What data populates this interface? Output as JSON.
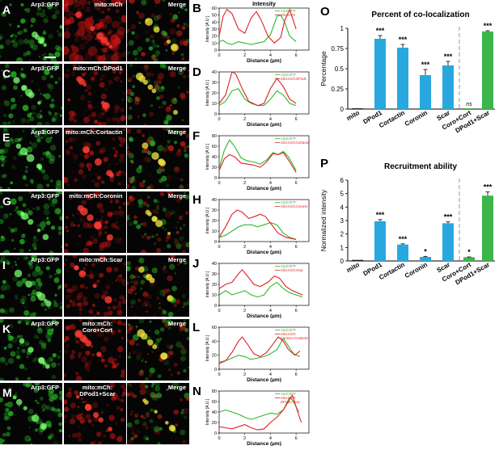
{
  "figure": {
    "rows": [
      {
        "letter": "A",
        "green": "Arp3:GFP",
        "red": "mito:mCh",
        "merge": "Merge",
        "plot_letter": "B"
      },
      {
        "letter": "C",
        "green": "Arp3:GFP",
        "red": "mito:mCh:DPod1",
        "merge": "Merge",
        "plot_letter": "D"
      },
      {
        "letter": "E",
        "green": "Arp3:GFP",
        "red": "mito:mCh:Cortactin",
        "merge": "Merge",
        "plot_letter": "F"
      },
      {
        "letter": "G",
        "green": "Arp3:GFP",
        "red": "mito:mCh:Coronin",
        "merge": "Merge",
        "plot_letter": "H"
      },
      {
        "letter": "I",
        "green": "Arp3:GFP",
        "red": "mito:mCh:Scar",
        "merge": "Merge",
        "plot_letter": "J"
      },
      {
        "letter": "K",
        "green": "Arp3:GFP",
        "red": "mito:mCh:\nCoro+Cort",
        "merge": "Merge",
        "plot_letter": "L"
      },
      {
        "letter": "M",
        "green": "Arp3:GFP",
        "red": "mito:mCh:\nDPod1+Scar",
        "merge": "Merge",
        "plot_letter": "N"
      }
    ]
  },
  "colors": {
    "green": "#2db82d",
    "red": "#e02020",
    "blue": "#29a8e0",
    "bar_green": "#3cb54a",
    "dark": "#222222"
  },
  "profiles": [
    {
      "title": "Intensity",
      "ylabel": "Intensity [A.U.]",
      "xlabel": "Distance (µm)",
      "legend": [
        "Arp3:GFP",
        "mito:mCh"
      ],
      "ylim": [
        0,
        60
      ],
      "yticks": [
        0,
        10,
        20,
        30,
        40,
        50,
        60
      ],
      "xticks": [
        0,
        2,
        4,
        6
      ],
      "green": [
        [
          0,
          12
        ],
        [
          0.3,
          14
        ],
        [
          0.6,
          10
        ],
        [
          1,
          8
        ],
        [
          1.5,
          12
        ],
        [
          2,
          10
        ],
        [
          2.5,
          8
        ],
        [
          3,
          10
        ],
        [
          3.5,
          12
        ],
        [
          4,
          22
        ],
        [
          4.5,
          48
        ],
        [
          4.8,
          50
        ],
        [
          5.1,
          40
        ],
        [
          5.5,
          20
        ],
        [
          6,
          12
        ]
      ],
      "red": [
        [
          0,
          20
        ],
        [
          0.3,
          48
        ],
        [
          0.6,
          58
        ],
        [
          1,
          52
        ],
        [
          1.5,
          30
        ],
        [
          2,
          24
        ],
        [
          2.5,
          46
        ],
        [
          2.9,
          55
        ],
        [
          3.3,
          42
        ],
        [
          3.8,
          20
        ],
        [
          4.3,
          10
        ],
        [
          4.8,
          18
        ],
        [
          5.1,
          42
        ],
        [
          5.5,
          58
        ],
        [
          6,
          30
        ]
      ]
    },
    {
      "title": "",
      "ylabel": "Intensity [A.U.]",
      "xlabel": "Distance (µm)",
      "legend": [
        "Arp3:GFP",
        "mito:mCh:DPod1"
      ],
      "ylim": [
        0,
        40
      ],
      "yticks": [
        0,
        10,
        20,
        30,
        40
      ],
      "xticks": [
        0,
        2,
        4,
        6
      ],
      "green": [
        [
          0,
          8
        ],
        [
          0.5,
          12
        ],
        [
          1,
          22
        ],
        [
          1.5,
          24
        ],
        [
          2,
          14
        ],
        [
          2.5,
          10
        ],
        [
          3,
          8
        ],
        [
          3.5,
          8
        ],
        [
          4,
          14
        ],
        [
          4.5,
          22
        ],
        [
          5,
          18
        ],
        [
          5.5,
          10
        ],
        [
          6,
          8
        ]
      ],
      "red": [
        [
          0,
          10
        ],
        [
          0.5,
          18
        ],
        [
          1,
          40
        ],
        [
          1.3,
          38
        ],
        [
          1.8,
          24
        ],
        [
          2.3,
          12
        ],
        [
          3,
          8
        ],
        [
          3.5,
          10
        ],
        [
          4,
          24
        ],
        [
          4.5,
          34
        ],
        [
          5,
          26
        ],
        [
          5.5,
          14
        ],
        [
          6,
          10
        ]
      ]
    },
    {
      "title": "",
      "ylabel": "Intensity [A.U.]",
      "xlabel": "Distance (µm)",
      "legend": [
        "Arp3:GFP",
        "mito:mCh:Cortactin"
      ],
      "ylim": [
        0,
        80
      ],
      "yticks": [
        0,
        20,
        40,
        60,
        80
      ],
      "xticks": [
        0,
        2,
        4,
        6
      ],
      "green": [
        [
          0,
          18
        ],
        [
          0.4,
          52
        ],
        [
          0.8,
          72
        ],
        [
          1.2,
          60
        ],
        [
          1.7,
          38
        ],
        [
          2.2,
          32
        ],
        [
          2.7,
          30
        ],
        [
          3.2,
          26
        ],
        [
          3.7,
          34
        ],
        [
          4.2,
          48
        ],
        [
          4.6,
          44
        ],
        [
          5,
          50
        ],
        [
          5.4,
          40
        ],
        [
          6,
          14
        ]
      ],
      "red": [
        [
          0,
          14
        ],
        [
          0.4,
          36
        ],
        [
          0.8,
          44
        ],
        [
          1.2,
          40
        ],
        [
          1.7,
          28
        ],
        [
          2.2,
          26
        ],
        [
          2.7,
          24
        ],
        [
          3.2,
          20
        ],
        [
          3.7,
          30
        ],
        [
          4.2,
          46
        ],
        [
          4.6,
          44
        ],
        [
          5,
          48
        ],
        [
          5.4,
          34
        ],
        [
          6,
          10
        ]
      ]
    },
    {
      "title": "",
      "ylabel": "Intensity [A.U.]",
      "xlabel": "Distance (µm)",
      "legend": [
        "Arp3:GFP",
        "mito:mCh:Coronin"
      ],
      "ylim": [
        0,
        40
      ],
      "yticks": [
        0,
        10,
        20,
        30,
        40
      ],
      "xticks": [
        0,
        2,
        4,
        6
      ],
      "green": [
        [
          0,
          4
        ],
        [
          0.5,
          6
        ],
        [
          1,
          10
        ],
        [
          1.5,
          14
        ],
        [
          2,
          16
        ],
        [
          2.5,
          16
        ],
        [
          3,
          14
        ],
        [
          3.5,
          16
        ],
        [
          4,
          18
        ],
        [
          4.5,
          16
        ],
        [
          5,
          8
        ],
        [
          5.5,
          4
        ],
        [
          6,
          2
        ]
      ],
      "red": [
        [
          0,
          4
        ],
        [
          0.5,
          14
        ],
        [
          1,
          26
        ],
        [
          1.4,
          30
        ],
        [
          1.8,
          28
        ],
        [
          2.3,
          22
        ],
        [
          2.8,
          24
        ],
        [
          3.2,
          26
        ],
        [
          3.6,
          24
        ],
        [
          4.1,
          16
        ],
        [
          4.6,
          8
        ],
        [
          5.2,
          4
        ],
        [
          6,
          2
        ]
      ]
    },
    {
      "title": "",
      "ylabel": "Intensity [A.U.]",
      "xlabel": "Distance (µm)",
      "legend": [
        "Arp3:GFP",
        "mito:mCh:Scar"
      ],
      "ylim": [
        0,
        40
      ],
      "yticks": [
        0,
        10,
        20,
        30,
        40
      ],
      "xticks": [
        0,
        2,
        4,
        6
      ],
      "green": [
        [
          0,
          10
        ],
        [
          0.5,
          14
        ],
        [
          1,
          10
        ],
        [
          1.5,
          12
        ],
        [
          2,
          14
        ],
        [
          2.5,
          10
        ],
        [
          3,
          8
        ],
        [
          3.5,
          10
        ],
        [
          4,
          18
        ],
        [
          4.5,
          22
        ],
        [
          5,
          16
        ],
        [
          5.5,
          12
        ],
        [
          6,
          10
        ],
        [
          6.5,
          8
        ]
      ],
      "red": [
        [
          0,
          16
        ],
        [
          0.5,
          20
        ],
        [
          1,
          22
        ],
        [
          1.5,
          30
        ],
        [
          1.8,
          34
        ],
        [
          2.2,
          28
        ],
        [
          2.7,
          20
        ],
        [
          3.2,
          18
        ],
        [
          3.8,
          22
        ],
        [
          4.3,
          28
        ],
        [
          4.7,
          26
        ],
        [
          5.2,
          18
        ],
        [
          5.7,
          14
        ],
        [
          6.5,
          10
        ]
      ]
    },
    {
      "title": "",
      "ylabel": "Intensity [A.U.]",
      "xlabel": "Distance (µm)",
      "legend": [
        "Arp3:GFP",
        "mito:mCh:",
        "Coronin+Cortactin"
      ],
      "ylim": [
        0,
        60
      ],
      "yticks": [
        0,
        20,
        40,
        60
      ],
      "xticks": [
        0,
        2,
        4,
        6
      ],
      "green": [
        [
          0,
          10
        ],
        [
          0.5,
          12
        ],
        [
          1,
          16
        ],
        [
          1.5,
          20
        ],
        [
          2,
          18
        ],
        [
          2.5,
          14
        ],
        [
          3,
          16
        ],
        [
          3.5,
          18
        ],
        [
          4,
          22
        ],
        [
          4.5,
          28
        ],
        [
          5,
          44
        ],
        [
          5.3,
          36
        ],
        [
          5.8,
          22
        ],
        [
          6.3,
          18
        ]
      ],
      "red": [
        [
          0,
          8
        ],
        [
          0.5,
          12
        ],
        [
          1,
          24
        ],
        [
          1.5,
          40
        ],
        [
          1.8,
          46
        ],
        [
          2.2,
          36
        ],
        [
          2.7,
          22
        ],
        [
          3.2,
          18
        ],
        [
          3.7,
          24
        ],
        [
          4.2,
          36
        ],
        [
          4.6,
          46
        ],
        [
          5,
          40
        ],
        [
          5.4,
          28
        ],
        [
          5.9,
          20
        ],
        [
          6.3,
          26
        ]
      ]
    },
    {
      "title": "",
      "ylabel": "Intensity [A.U.]",
      "xlabel": "Distance (µm)",
      "legend": [
        "Arp3:GFP",
        "mito:mCh:",
        "DPod1+Scar"
      ],
      "ylim": [
        0,
        80
      ],
      "yticks": [
        0,
        20,
        40,
        60,
        80
      ],
      "xticks": [
        0,
        2,
        4,
        6
      ],
      "green": [
        [
          0,
          40
        ],
        [
          0.5,
          44
        ],
        [
          1,
          40
        ],
        [
          1.5,
          36
        ],
        [
          2,
          30
        ],
        [
          2.5,
          26
        ],
        [
          3,
          30
        ],
        [
          3.5,
          34
        ],
        [
          4,
          38
        ],
        [
          4.5,
          36
        ],
        [
          5,
          44
        ],
        [
          5.5,
          68
        ],
        [
          5.8,
          60
        ],
        [
          6.2,
          40
        ]
      ],
      "red": [
        [
          0,
          12
        ],
        [
          0.5,
          10
        ],
        [
          1,
          8
        ],
        [
          1.5,
          12
        ],
        [
          2,
          16
        ],
        [
          2.5,
          10
        ],
        [
          3,
          6
        ],
        [
          3.5,
          8
        ],
        [
          4,
          20
        ],
        [
          4.5,
          30
        ],
        [
          5,
          44
        ],
        [
          5.4,
          60
        ],
        [
          5.7,
          72
        ],
        [
          6,
          50
        ],
        [
          6.4,
          20
        ]
      ]
    }
  ],
  "bar_panels": [
    {
      "letter": "O",
      "title": "Percent of co-localization",
      "ylabel": "Percentage",
      "ylim": [
        0,
        1
      ],
      "yticks": [
        "0",
        "0.25",
        "0.5",
        "0.75",
        "1"
      ],
      "categories": [
        "mito",
        "DPod1",
        "Cortactin",
        "Coronin",
        "Scar",
        "Coro+Cort",
        "DPod1+Scar"
      ],
      "values": [
        0.01,
        0.87,
        0.76,
        0.42,
        0.54,
        0.01,
        0.96
      ],
      "errors": [
        0.0,
        0.04,
        0.04,
        0.07,
        0.05,
        0.0,
        0.01
      ],
      "significance": [
        "",
        "***",
        "***",
        "***",
        "***",
        "ns",
        "***"
      ]
    },
    {
      "letter": "P",
      "title": "Recruitment ability",
      "ylabel": "Normalized intensity",
      "ylim": [
        0,
        6
      ],
      "yticks": [
        "0",
        "1",
        "2",
        "3",
        "4",
        "5",
        "6"
      ],
      "categories": [
        "mito",
        "DPod1",
        "Cortactin",
        "Coronin",
        "Scar",
        "Coro+Cort",
        "DPod1+Scar"
      ],
      "values": [
        0.08,
        2.95,
        1.22,
        0.3,
        2.8,
        0.28,
        4.85
      ],
      "errors": [
        0.0,
        0.12,
        0.05,
        0.04,
        0.1,
        0.02,
        0.28
      ],
      "significance": [
        "",
        "***",
        "***",
        "*",
        "***",
        "*",
        "***"
      ]
    }
  ]
}
